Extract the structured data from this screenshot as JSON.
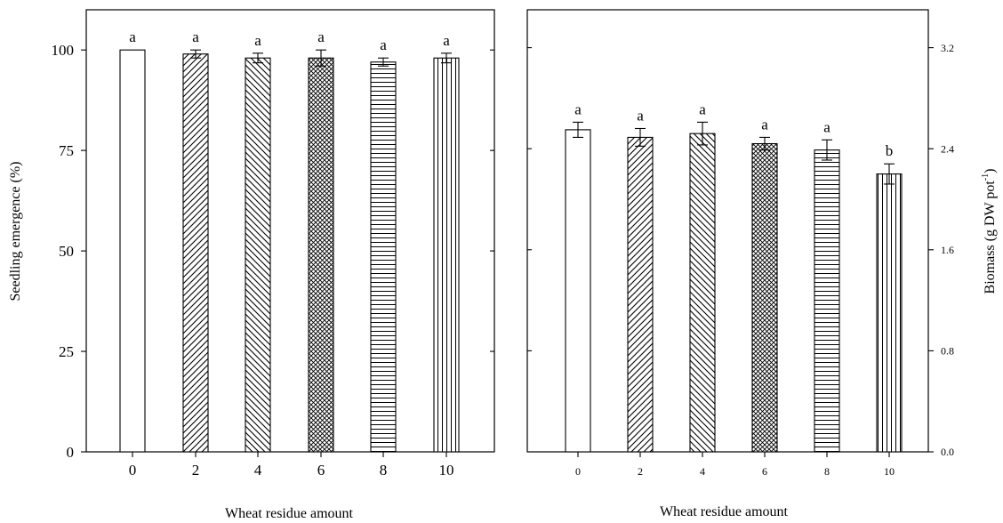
{
  "chart_data": [
    {
      "type": "bar",
      "panel": "left",
      "categories": [
        "0",
        "2",
        "4",
        "6",
        "8",
        "10"
      ],
      "values": [
        100,
        99,
        98,
        98,
        97,
        98
      ],
      "errors": [
        0,
        1.0,
        1.2,
        2.0,
        1.0,
        1.2
      ],
      "significance": [
        "a",
        "a",
        "a",
        "a",
        "a",
        "a"
      ],
      "patterns": [
        "none",
        "diag-right",
        "diag-left",
        "crosshatch",
        "horizontal",
        "vertical"
      ],
      "xlabel": "Wheat residue amount",
      "ylabel": "Seedling emergence (%)",
      "ylim": [
        0,
        110
      ],
      "yticks": [
        "0",
        "25",
        "50",
        "75",
        "100"
      ],
      "yaxis_side": "left",
      "grid": false,
      "legend": "none"
    },
    {
      "type": "bar",
      "panel": "right",
      "categories": [
        "0",
        "2",
        "4",
        "6",
        "8",
        "10"
      ],
      "values": [
        2.55,
        2.49,
        2.52,
        2.44,
        2.39,
        2.2
      ],
      "errors": [
        0.06,
        0.07,
        0.09,
        0.05,
        0.08,
        0.08
      ],
      "significance": [
        "a",
        "a",
        "a",
        "a",
        "a",
        "b"
      ],
      "patterns": [
        "none",
        "diag-right",
        "diag-left",
        "crosshatch",
        "horizontal",
        "vertical"
      ],
      "xlabel": "Wheat residue amount",
      "ylabel_prefix": "Biomass (g DW pot",
      "ylabel_sup": "-1",
      "ylabel_suffix": ")",
      "ylim": [
        0,
        3.5
      ],
      "yticks": [
        "0.0",
        "0.8",
        "1.6",
        "2.4",
        "3.2"
      ],
      "yaxis_side": "right",
      "grid": false,
      "legend": "none"
    }
  ]
}
